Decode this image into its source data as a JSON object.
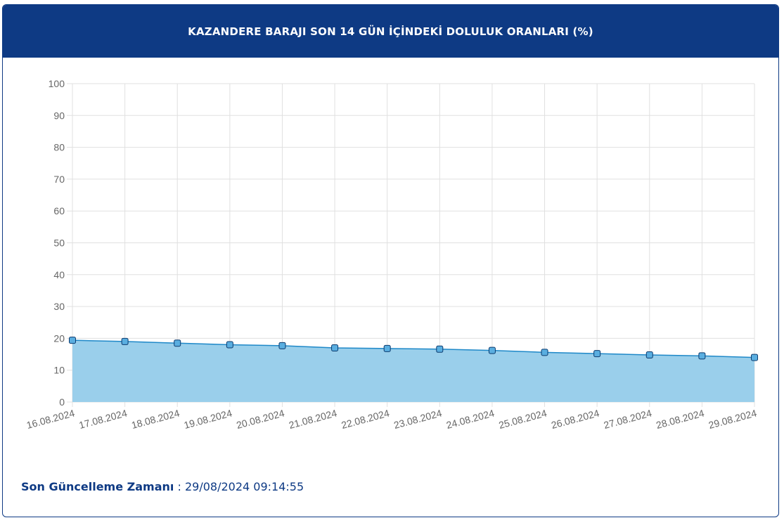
{
  "header": {
    "title": "KAZANDERE BARAJI SON 14 GÜN İÇİNDEKİ DOLULUK ORANLARI (%)"
  },
  "chart_data": {
    "type": "area",
    "title": "KAZANDERE BARAJI SON 14 GÜN İÇİNDEKİ DOLULUK ORANLARI (%)",
    "xlabel": "",
    "ylabel": "",
    "ylim": [
      0,
      100
    ],
    "yticks": [
      0,
      10,
      20,
      30,
      40,
      50,
      60,
      70,
      80,
      90,
      100
    ],
    "grid": true,
    "legend": "none",
    "categories": [
      "16.08.2024",
      "17.08.2024",
      "18.08.2024",
      "19.08.2024",
      "20.08.2024",
      "21.08.2024",
      "22.08.2024",
      "23.08.2024",
      "24.08.2024",
      "25.08.2024",
      "26.08.2024",
      "27.08.2024",
      "28.08.2024",
      "29.08.2024"
    ],
    "series": [
      {
        "values": [
          19.4,
          19.0,
          18.5,
          18.0,
          17.7,
          17.0,
          16.8,
          16.6,
          16.2,
          15.6,
          15.2,
          14.8,
          14.5,
          14.0
        ],
        "line_color": "#1e88c8",
        "fill_color": "#9acfeb",
        "marker_color": "#5aaee0",
        "marker_stroke": "#0b3a6e"
      }
    ]
  },
  "footer": {
    "label": "Son Güncelleme Zamanı",
    "separator": " : ",
    "timestamp": "29/08/2024 09:14:55"
  },
  "colors": {
    "brand": "#0e3a84",
    "grid": "#e0e0e0",
    "axis_text": "#666666"
  }
}
